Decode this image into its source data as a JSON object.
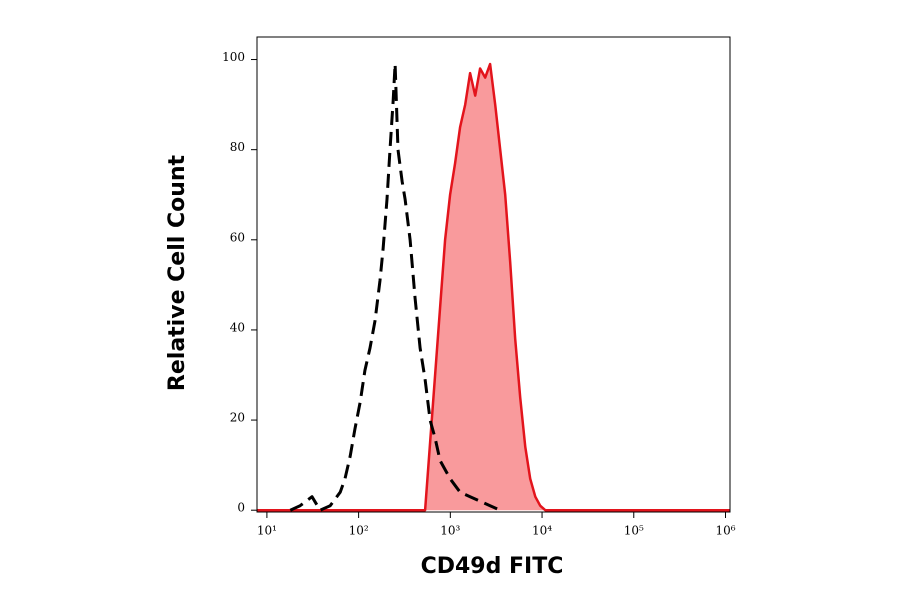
{
  "chart_data": {
    "type": "area",
    "x_label": "CD49d FITC",
    "y_label": "Relative Cell Count",
    "log_x": true,
    "xlim": [
      7.8,
      1120000
    ],
    "xticks": [
      {
        "value": 10,
        "label": "10¹"
      },
      {
        "value": 100,
        "label": "10²"
      },
      {
        "value": 1000,
        "label": "10³"
      },
      {
        "value": 10000,
        "label": "10⁴"
      },
      {
        "value": 100000,
        "label": "10⁵"
      },
      {
        "value": 1000000,
        "label": "10⁶"
      }
    ],
    "ylim": [
      -0.4,
      105
    ],
    "yticks": [
      0,
      20,
      40,
      60,
      80,
      100
    ],
    "series": [
      {
        "color": "#e3141c",
        "fill_color": "#f99a9c",
        "style": "solid",
        "x": [
          7.8,
          531,
          601,
          682,
          774,
          877,
          995,
          1127,
          1279,
          1452,
          1644,
          1866,
          2113,
          2399,
          2716,
          3083,
          3500,
          3963,
          4498,
          5093,
          5778,
          6561,
          7430,
          8433,
          9550,
          10840,
          1120000
        ],
        "values": [
          0,
          0,
          15,
          30,
          45,
          60,
          70,
          77,
          85,
          90,
          97,
          92,
          98,
          96,
          99,
          90,
          80,
          70,
          55,
          38,
          25,
          14,
          7,
          3,
          1,
          0,
          0
        ]
      },
      {
        "color": "#000000",
        "style": "dashed",
        "x": [
          18,
          23,
          31,
          38,
          49,
          63,
          71,
          81,
          91,
          104,
          117,
          133,
          151,
          171,
          185,
          204,
          220,
          238,
          250,
          269,
          298,
          321,
          364,
          413,
          468,
          531,
          601,
          682,
          774,
          995,
          1279,
          1644,
          2113,
          2716,
          3500
        ],
        "values": [
          0,
          1,
          3,
          0,
          1,
          4,
          7,
          12,
          18,
          24,
          31,
          36,
          42,
          51,
          58,
          69,
          80,
          91,
          99,
          80,
          73,
          69,
          60,
          47,
          36,
          29,
          20,
          16,
          11,
          7,
          4,
          3,
          2,
          1,
          0
        ]
      }
    ]
  }
}
